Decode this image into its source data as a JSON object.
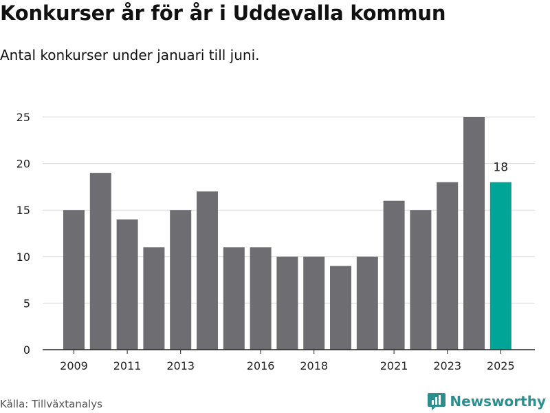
{
  "header": {
    "title": "Konkurser år för år i Uddevalla kommun",
    "subtitle": "Antal konkurser under januari till juni."
  },
  "footer": {
    "source": "Källa: Tillväxtanalys",
    "brand": "Newsworthy",
    "brand_icon": "newsworthy-logo-icon"
  },
  "colors": {
    "bar": "#6e6d72",
    "highlight": "#00a598",
    "grid": "#dcdcdc",
    "axis": "#222222",
    "brand": "#2c8f8f"
  },
  "chart_data": {
    "type": "bar",
    "categories": [
      "2009",
      "2010",
      "2011",
      "2012",
      "2013",
      "2014",
      "2015",
      "2016",
      "2017",
      "2018",
      "2019",
      "2020",
      "2021",
      "2022",
      "2023",
      "2024",
      "2025"
    ],
    "values": [
      15,
      19,
      14,
      11,
      15,
      17,
      11,
      11,
      10,
      10,
      9,
      10,
      16,
      15,
      18,
      25,
      18
    ],
    "x_tick_labels": [
      "2009",
      "2011",
      "2013",
      "2016",
      "2018",
      "2021",
      "2023",
      "2025"
    ],
    "y_ticks": [
      0,
      5,
      10,
      15,
      20,
      25
    ],
    "ylim": [
      0,
      25
    ],
    "highlight_category": "2025",
    "data_labels": [
      {
        "category": "2025",
        "text": "18"
      }
    ],
    "grid": true,
    "legend": "none"
  }
}
